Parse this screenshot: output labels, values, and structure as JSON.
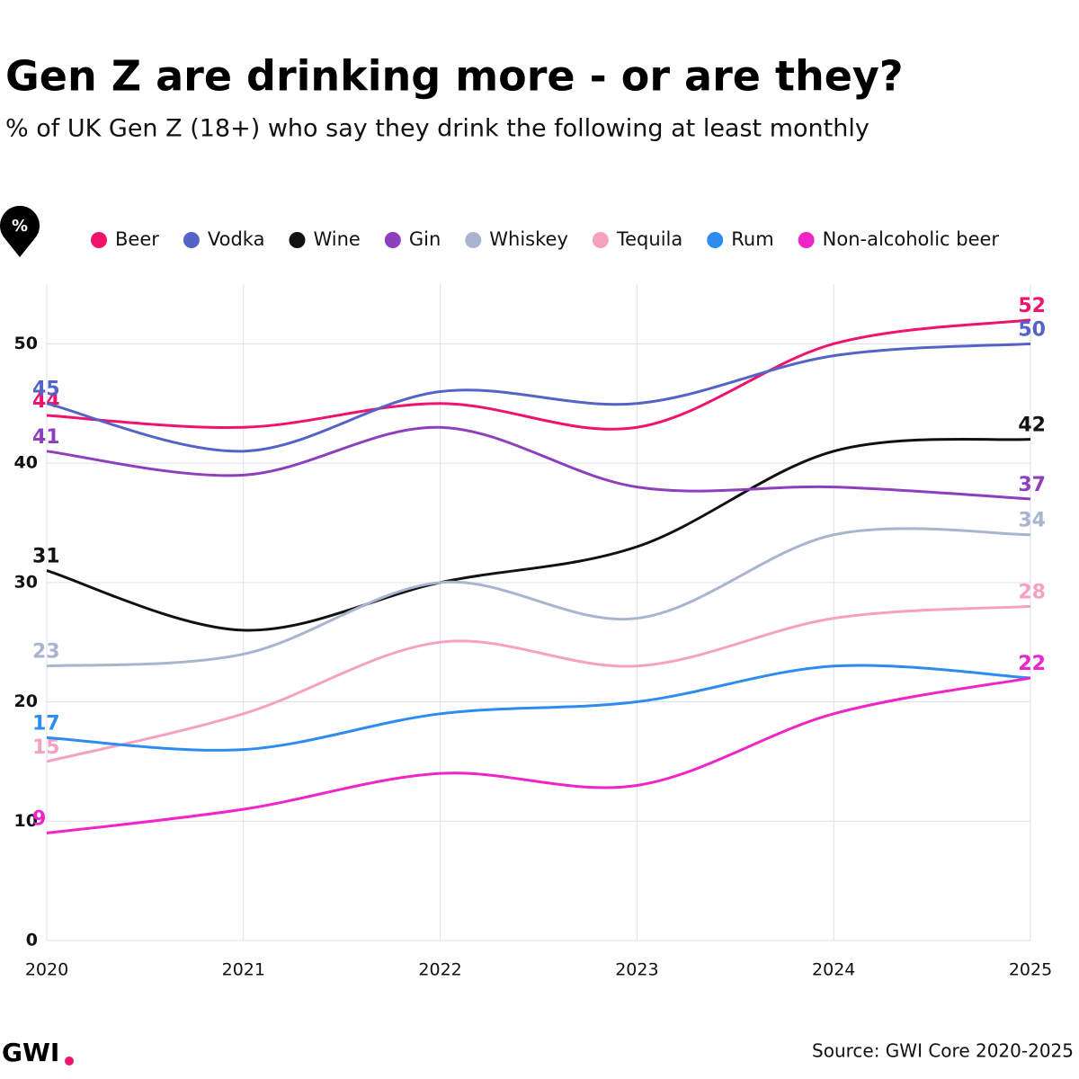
{
  "chart_data": {
    "type": "line",
    "title": "Gen Z are drinking more - or are they?",
    "subtitle": "% of UK Gen Z (18+) who say they drink the following at least monthly",
    "unit_badge": "%",
    "categories": [
      "2020",
      "2021",
      "2022",
      "2023",
      "2024",
      "2025"
    ],
    "series": [
      {
        "name": "Beer",
        "color": "#f0136e",
        "values": [
          44,
          43,
          45,
          43,
          50,
          52
        ]
      },
      {
        "name": "Vodka",
        "color": "#5563c8",
        "values": [
          45,
          41,
          46,
          45,
          49,
          50
        ]
      },
      {
        "name": "Wine",
        "color": "#111111",
        "values": [
          31,
          26,
          30,
          33,
          41,
          42
        ]
      },
      {
        "name": "Gin",
        "color": "#8e3fbf",
        "values": [
          41,
          39,
          43,
          38,
          38,
          37
        ]
      },
      {
        "name": "Whiskey",
        "color": "#a9b5cf",
        "values": [
          23,
          24,
          30,
          27,
          34,
          34
        ]
      },
      {
        "name": "Tequila",
        "color": "#f7a1c0",
        "values": [
          15,
          19,
          25,
          23,
          27,
          28
        ]
      },
      {
        "name": "Rum",
        "color": "#2d8cf0",
        "values": [
          17,
          16,
          19,
          20,
          23,
          22
        ]
      },
      {
        "name": "Non-alcoholic beer",
        "color": "#f024c8",
        "values": [
          9,
          11,
          14,
          13,
          19,
          22
        ]
      }
    ],
    "ylim": [
      0,
      55
    ],
    "yticks": [
      0,
      10,
      20,
      30,
      40,
      50
    ],
    "grid": true,
    "source": "Source: GWI Core 2020-2025",
    "logo": "GWI"
  }
}
